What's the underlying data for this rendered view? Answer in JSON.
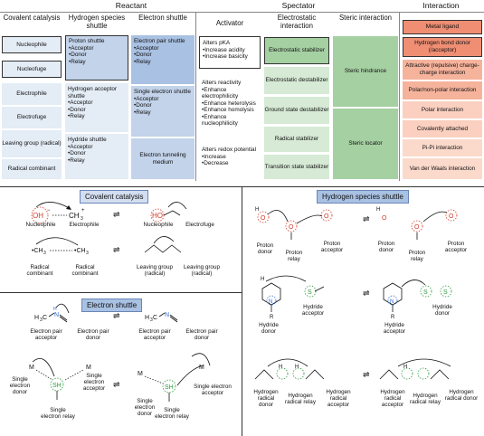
{
  "colors": {
    "reactant_light": "#e4ecf6",
    "reactant_mid": "#c2d3ea",
    "reactant_dark": "#a9c1e2",
    "spectator_green": "#d6ead5",
    "spectator_green_dark": "#a5d0a2",
    "interaction_dark": "#ef8e73",
    "interaction_light": "#fbd9cb",
    "pill_blue": "#c5d6ee",
    "oxygen_red": "#d23a2a",
    "nitrogen_blue": "#2a6ad2",
    "sulfur_green": "#2c9a3c"
  },
  "header": {
    "reactant": "Reactant",
    "spectator": "Spectator",
    "interaction": "Interaction"
  },
  "columns": {
    "covalent": "Covalent catalysis",
    "hydrogen": "Hydrogen species shuttle",
    "electron": "Electron shuttle",
    "activator": "Activator",
    "electrostatic": "Electrostatic interaction",
    "steric": "Steric interaction"
  },
  "covalent_cells": [
    "Nucleophile",
    "Nucleofuge",
    "Electrophile",
    "Electrofuge",
    "Leaving group (radical)",
    "Radical combinant"
  ],
  "hydrogen_cells": [
    {
      "title": "Proton shuttle",
      "items": [
        "Acceptor",
        "Donor",
        "Relay"
      ]
    },
    {
      "title": "Hydrogen acceptor shuttle",
      "items": [
        "Acceptor",
        "Donor",
        "Relay"
      ]
    },
    {
      "title": "Hydride shuttle",
      "items": [
        "Acceptor",
        "Donor",
        "Relay"
      ]
    }
  ],
  "electron_cells": [
    {
      "title": "Electron pair shuttle",
      "items": [
        "Acceptor",
        "Donor",
        "Relay"
      ]
    },
    {
      "title": "Single electron shuttle",
      "items": [
        "Acceptor",
        "Donor",
        "Relay"
      ]
    },
    {
      "title": "Electron tunneling medium",
      "items": []
    }
  ],
  "activator_cells": [
    {
      "title": "Alters pKA",
      "items": [
        "Increase acidity",
        "Increase basicity"
      ]
    },
    {
      "title": "Alters reactivity",
      "items": [
        "Enhance electrophilicity",
        "Enhance heterolysis",
        "Enhance homolysis",
        "Enhance nucleophilicity"
      ]
    },
    {
      "title": "Alters redox potential",
      "items": [
        "Increase",
        "Decrease"
      ]
    }
  ],
  "electrostatic_cells": [
    "Electrostatic stabilizer",
    "Electrostatic destabilizer",
    "Ground state destabilizer",
    "Radical stabilizer",
    "Transition state stabilizer"
  ],
  "steric_cells": [
    "Steric hindrance",
    "Steric locator"
  ],
  "interaction_cells": [
    "Metal ligand",
    "Hydrogen bond donor (/acceptor)",
    "Attractive (repulsive) charge-charge interaction",
    "Polar/non-polar interaction",
    "Polar interaction",
    "Covalently attached",
    "Pi-Pi interaction",
    "Van der Waals interaction"
  ],
  "panels": {
    "covalent": {
      "title": "Covalent catalysis",
      "labels": [
        "Nucleophile",
        "Electrophile",
        "Nucleophile",
        "Electrofuge",
        "Radical combinant",
        "Radical combinant",
        "Leaving group (radical)",
        "Leaving group (radical)"
      ],
      "atoms": {
        "oh": "OH",
        "ch3": "CH3",
        "ho": "HO"
      }
    },
    "electron": {
      "title": "Electron shuttle",
      "labels": [
        "Electron pair acceptor",
        "Electron pair donor",
        "Electron pair acceptor",
        "Electron pair donor",
        "Single electron donor",
        "Single electron acceptor",
        "Single electron relay",
        "Single electron donor",
        "Single electron acceptor",
        "Single electron relay"
      ],
      "atoms": {
        "m": "M",
        "sh": "SH",
        "n": "N",
        "h3c": "H3C"
      }
    },
    "hydrogen": {
      "title": "Hydrogen species shuttle",
      "labels": [
        "Proton donor",
        "Proton relay",
        "Proton acceptor",
        "Proton donor",
        "Proton relay",
        "Proton acceptor",
        "Hydride donor",
        "Hydride acceptor",
        "Hydride acceptor",
        "Hydride donor",
        "Hydrogen radical donor",
        "Hydrogen radical relay",
        "Hydrogen radical acceptor",
        "Hydrogen radical acceptor",
        "Hydrogen radical relay",
        "Hydrogen radical donor"
      ],
      "atoms": {
        "o": "O",
        "h": "H",
        "s": "S",
        "n": "N",
        "ch3": "CH3",
        "r": "R"
      }
    }
  }
}
